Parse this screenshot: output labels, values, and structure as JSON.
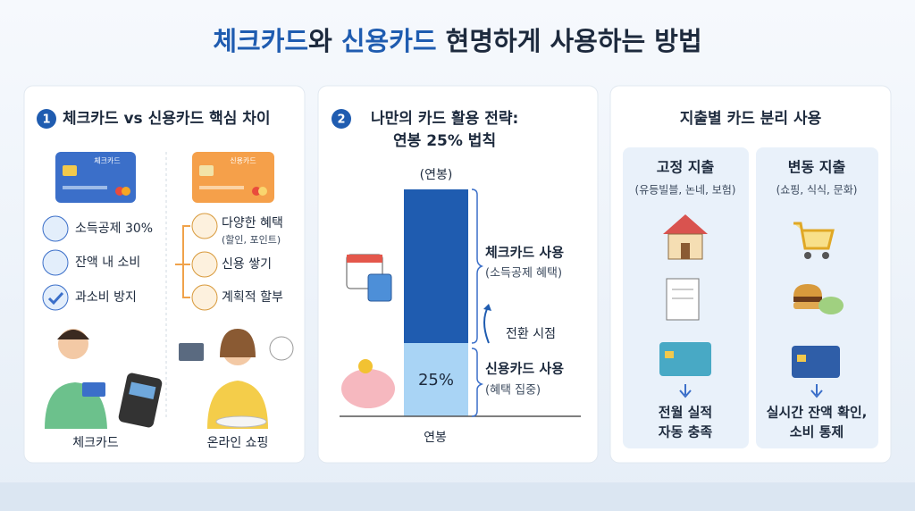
{
  "title": {
    "parts": [
      "체크카드",
      "와 ",
      "신용카드",
      " 현명하게 사용하는 방법"
    ]
  },
  "panel1": {
    "badge": "1",
    "title": "체크카드 vs 신용카드 핵심 차이",
    "check": {
      "card_label": "체크카드",
      "items": [
        "소득공제 30%",
        "잔액 내 소비",
        "과소비 방지"
      ],
      "caption": "체크카드"
    },
    "credit": {
      "card_label": "신용카드",
      "items": [
        {
          "text": "다양한 혜택",
          "sub": "(할인, 포인트)"
        },
        {
          "text": "신용 쌓기"
        },
        {
          "text": "계획적 할부"
        }
      ],
      "caption": "온라인 쇼핑"
    }
  },
  "panel2": {
    "badge": "2",
    "title_lines": [
      "나만의 카드 활용 전략:",
      "연봉 25% 법칙"
    ],
    "bar_top": "(연봉)",
    "bar_share": "25%",
    "bar_base": "연봉",
    "upper": {
      "label": "체크카드 사용",
      "sub": "(소득공제 혜택)"
    },
    "switch": "전환 시점",
    "lower": {
      "label": "신용카드 사용",
      "sub": "(혜택 집중)"
    }
  },
  "panel3": {
    "title": "지출별 카드 분리 사용",
    "fixed": {
      "heading": "고정 지출",
      "sub": "(유등빌블, 논네, 보험)",
      "result_lines": [
        "전월 실적",
        "자동 충족"
      ]
    },
    "variable": {
      "heading": "변동 지출",
      "sub": "(쇼핑, 식식, 문화)",
      "result_lines": [
        "실시간 잔액 확인,",
        "소비 통제"
      ]
    }
  }
}
